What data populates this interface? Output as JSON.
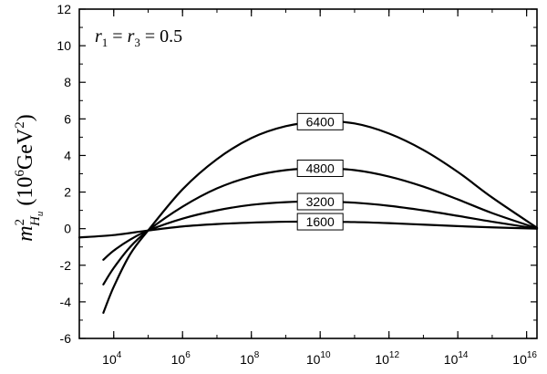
{
  "chart_data": {
    "type": "line",
    "title": "",
    "xlabel": "",
    "ylabel": "m²_{H_u} (10⁶GeV²)",
    "ylabel_parts": {
      "m": "m",
      "sup": "2",
      "sub_H": "H",
      "sub_u": "u",
      "unit_open": "(10",
      "unit_exp1": "6",
      "unit_mid": "GeV",
      "unit_exp2": "2",
      "unit_close": ")"
    },
    "annotation": {
      "r1": "r",
      "r1_sub": "1",
      "eq1": " = ",
      "r3": "r",
      "r3_sub": "3",
      "eq2": " = 0.5"
    },
    "x_scale": "log",
    "xlim": [
      1000,
      20000000000000000
    ],
    "ylim": [
      -6,
      12
    ],
    "x_ticks": [
      {
        "exponent": 4,
        "base": "10",
        "exp_label": "4"
      },
      {
        "exponent": 6,
        "base": "10",
        "exp_label": "6"
      },
      {
        "exponent": 8,
        "base": "10",
        "exp_label": "8"
      },
      {
        "exponent": 10,
        "base": "10",
        "exp_label": "10"
      },
      {
        "exponent": 12,
        "base": "10",
        "exp_label": "12"
      },
      {
        "exponent": 14,
        "base": "10",
        "exp_label": "14"
      },
      {
        "exponent": 16,
        "base": "10",
        "exp_label": "16"
      }
    ],
    "y_ticks": [
      "-6",
      "-4",
      "-2",
      "0",
      "2",
      "4",
      "6",
      "8",
      "10",
      "12"
    ],
    "series_label_position": 10000000000,
    "series": [
      {
        "name": "6400",
        "x": [
          5000,
          10000,
          30000,
          100000,
          1000000,
          10000000,
          100000000,
          1000000000,
          10000000000,
          100000000000,
          1000000000000,
          10000000000000,
          100000000000000,
          1000000000000000,
          20000000000000000
        ],
        "y": [
          -4.6,
          -3.18,
          -1.4,
          -0.1,
          2.15,
          3.8,
          4.95,
          5.6,
          5.85,
          5.75,
          5.2,
          4.3,
          3.1,
          1.7,
          0.05
        ]
      },
      {
        "name": "4800",
        "x": [
          5000,
          10000,
          30000,
          100000,
          1000000,
          10000000,
          100000000,
          1000000000,
          10000000000,
          100000000000,
          1000000000000,
          10000000000000,
          100000000000000,
          1000000000000000,
          20000000000000000
        ],
        "y": [
          -3.05,
          -2.15,
          -1.0,
          -0.1,
          1.2,
          2.2,
          2.85,
          3.2,
          3.3,
          3.2,
          2.85,
          2.3,
          1.6,
          0.85,
          0.02
        ]
      },
      {
        "name": "3200",
        "x": [
          5000,
          10000,
          30000,
          100000,
          1000000,
          10000000,
          100000000,
          1000000000,
          10000000000,
          100000000000,
          1000000000000,
          10000000000000,
          100000000000000,
          1000000000000000,
          20000000000000000
        ],
        "y": [
          -1.7,
          -1.2,
          -0.6,
          -0.1,
          0.55,
          1.0,
          1.3,
          1.45,
          1.48,
          1.42,
          1.25,
          1.0,
          0.7,
          0.38,
          0.0
        ]
      },
      {
        "name": "1600",
        "x": [
          1000,
          10000,
          100000,
          1000000,
          10000000,
          100000000,
          1000000000,
          10000000000,
          100000000000,
          1000000000000,
          10000000000000,
          100000000000000,
          1000000000000000,
          20000000000000000
        ],
        "y": [
          -0.48,
          -0.35,
          -0.1,
          0.12,
          0.25,
          0.33,
          0.38,
          0.38,
          0.36,
          0.3,
          0.22,
          0.14,
          0.07,
          0.0
        ]
      }
    ]
  }
}
